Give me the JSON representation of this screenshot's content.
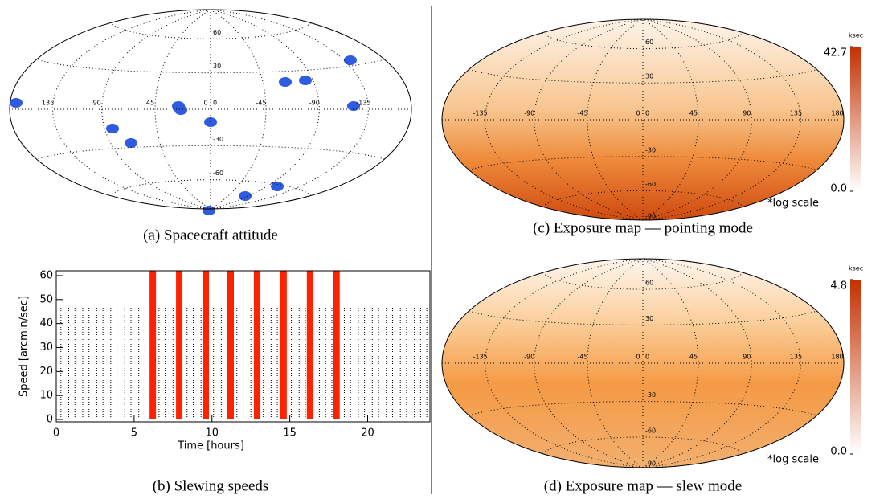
{
  "chart_data": [
    {
      "type": "map",
      "caption": "(a) Spacecraft attitude",
      "xlim": [
        180,
        -180
      ],
      "ylim": [
        -90,
        90
      ],
      "xticks": [
        135,
        90,
        45,
        0,
        -45,
        -90,
        -135
      ],
      "yticks": [
        60,
        30,
        0,
        -30,
        -60
      ],
      "fill": "#ffffff"
    },
    {
      "type": "bar",
      "caption": "(b) Slewing speeds",
      "xlabel": "Time [hours]",
      "ylabel": "Speed [arcmin/sec]",
      "xlim": [
        0,
        24
      ],
      "ylim": [
        -1,
        62
      ],
      "xticks": [
        0,
        5,
        10,
        15,
        20
      ],
      "yticks": [
        0,
        10,
        20,
        30,
        40,
        50,
        60
      ],
      "series": [
        {
          "color": "#000000",
          "x": [
            0.3,
            0.8,
            1.2,
            1.7,
            2.1,
            2.6,
            3.0,
            3.5,
            3.9,
            4.4,
            4.8,
            5.3,
            5.7,
            6.6,
            7.0,
            7.5,
            8.4,
            8.8,
            9.3,
            10.1,
            10.6,
            11.6,
            12.0,
            12.5,
            13.3,
            13.8,
            14.2,
            15.1,
            15.6,
            16.0,
            16.9,
            17.3,
            17.7,
            18.5,
            18.9,
            19.4,
            19.8,
            20.3,
            20.7,
            21.2,
            21.6,
            22.1,
            22.5,
            23.0,
            23.4,
            23.8
          ],
          "values": [
            47,
            47,
            47,
            47,
            47,
            47,
            47,
            47,
            47,
            47,
            47,
            47,
            47,
            47,
            47,
            47,
            47,
            47,
            47,
            47,
            47,
            47,
            47,
            47,
            47,
            47,
            47,
            47,
            47,
            47,
            47,
            47,
            47,
            47,
            47,
            47,
            47,
            47,
            47,
            47,
            47,
            47,
            47,
            47,
            47,
            47
          ]
        },
        {
          "color": "#ff2200",
          "x": [
            6.2,
            7.9,
            9.6,
            11.2,
            12.9,
            14.6,
            16.3,
            18.0
          ],
          "values": [
            62,
            62,
            62,
            62,
            62,
            62,
            62,
            62
          ]
        }
      ]
    },
    {
      "type": "map",
      "caption": "(c) Exposure map — pointing mode",
      "annotation": "*log scale",
      "xlim": [
        -180,
        180
      ],
      "ylim": [
        -90,
        90
      ],
      "xticks": [
        -135,
        -90,
        -45,
        0,
        45,
        90,
        135,
        180
      ],
      "yticks": [
        60,
        30,
        0,
        -30,
        -60,
        -90
      ],
      "colormap": [
        "#ffffff",
        "#c43000"
      ],
      "colorbar": {
        "label": "ksec",
        "lim": [
          0,
          42.7
        ],
        "ticks": [
          {
            "value": 0,
            "label": "0.0"
          },
          42.7
        ]
      }
    },
    {
      "type": "map",
      "caption": "(d) Exposure map — slew mode",
      "annotation": "*log scale",
      "xlim": [
        -180,
        180
      ],
      "ylim": [
        -90,
        90
      ],
      "xticks": [
        -135,
        -90,
        -45,
        0,
        45,
        90,
        135,
        180
      ],
      "yticks": [
        60,
        30,
        0,
        -30,
        -60,
        -90
      ],
      "colormap": [
        "#ffffff",
        "#c43000"
      ],
      "colorbar": {
        "label": "ksec",
        "lim": [
          0,
          4.8
        ],
        "ticks": [
          {
            "value": 0,
            "label": "0.0"
          },
          4.8
        ]
      }
    }
  ]
}
